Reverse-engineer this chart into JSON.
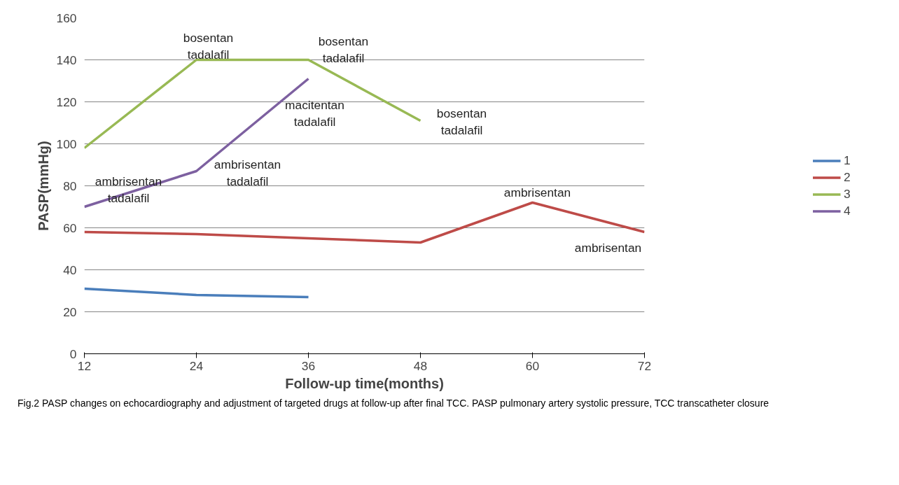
{
  "chart_data": {
    "type": "line",
    "xlabel": "Follow-up time(months)",
    "ylabel": "PASP(mmHg)",
    "x": [
      12,
      24,
      36,
      48,
      60,
      72
    ],
    "xlim": [
      12,
      72
    ],
    "xticks": [
      12,
      24,
      36,
      48,
      60,
      72
    ],
    "ylim": [
      0,
      160
    ],
    "yticks": [
      0,
      20,
      40,
      60,
      80,
      100,
      120,
      140,
      160
    ],
    "grid": "y",
    "legend": "right",
    "marker": "none",
    "line_style": "solid",
    "series": [
      {
        "name": "1",
        "color": "#4a7ebb",
        "values": [
          31,
          28,
          27,
          null,
          null,
          null
        ]
      },
      {
        "name": "2",
        "color": "#be4b48",
        "values": [
          58,
          57,
          55,
          53,
          72,
          58
        ]
      },
      {
        "name": "3",
        "color": "#98b954",
        "values": [
          98,
          140,
          140,
          111,
          null,
          null
        ]
      },
      {
        "name": "4",
        "color": "#7d60a0",
        "values": [
          70,
          87,
          131,
          null,
          null,
          null
        ]
      }
    ],
    "annotations": [
      {
        "text": "ambrisentan\ntadalafil",
        "x": 12,
        "y": 70
      },
      {
        "text": "ambrisentan\ntadalafil",
        "x": 24,
        "y": 87
      },
      {
        "text": "macitentan\ntadalafil",
        "x": 36,
        "y": 131
      },
      {
        "text": "bosentan\ntadalafil",
        "x": 24,
        "y": 140
      },
      {
        "text": "bosentan\ntadalafil",
        "x": 36,
        "y": 140
      },
      {
        "text": "bosentan\ntadalafil",
        "x": 48,
        "y": 111
      },
      {
        "text": "ambrisentan",
        "x": 60,
        "y": 72
      },
      {
        "text": "ambrisentan",
        "x": 72,
        "y": 58
      },
      "Fig.2  PASP changes on echocardiography and adjustment of targeted drugs at follow-up after final TCC. PASP pulmonary artery systolic pressure, TCC transcatheter closure"
    ]
  }
}
